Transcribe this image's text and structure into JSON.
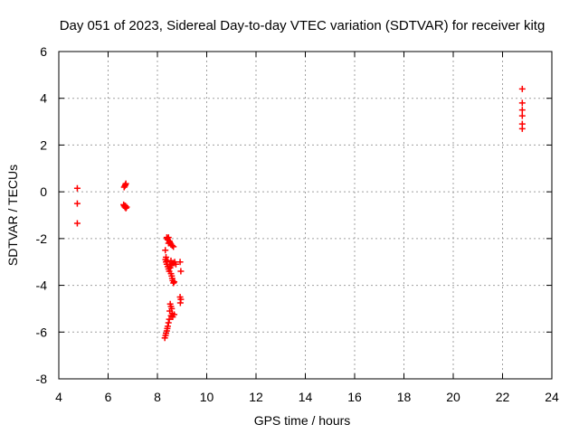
{
  "chart_data": {
    "type": "scatter",
    "title": "Day 051 of 2023, Sidereal Day-to-day VTEC variation (SDTVAR) for receiver kitg",
    "xlabel": "GPS time / hours",
    "ylabel": "SDTVAR / TECUs",
    "xlim": [
      4,
      24
    ],
    "ylim": [
      -8,
      6
    ],
    "xticks": [
      "4",
      "6",
      "8",
      "10",
      "12",
      "14",
      "16",
      "18",
      "20",
      "22",
      "24"
    ],
    "yticks": [
      "-8",
      "-6",
      "-4",
      "-2",
      "0",
      "2",
      "4",
      "6"
    ],
    "grid": true,
    "marker": "+",
    "series": [
      {
        "name": "SDTVAR",
        "color": "#ff0000",
        "points": [
          [
            4.75,
            0.15
          ],
          [
            4.75,
            -0.5
          ],
          [
            4.75,
            -1.35
          ],
          [
            6.65,
            0.2
          ],
          [
            6.68,
            0.25
          ],
          [
            6.7,
            0.3
          ],
          [
            6.72,
            0.35
          ],
          [
            6.63,
            -0.55
          ],
          [
            6.65,
            -0.6
          ],
          [
            6.68,
            -0.65
          ],
          [
            6.7,
            -0.6
          ],
          [
            6.72,
            -0.7
          ],
          [
            6.75,
            -0.65
          ],
          [
            8.38,
            -1.95
          ],
          [
            8.4,
            -2.0
          ],
          [
            8.42,
            -2.05
          ],
          [
            8.45,
            -1.95
          ],
          [
            8.48,
            -2.1
          ],
          [
            8.5,
            -2.15
          ],
          [
            8.52,
            -2.2
          ],
          [
            8.55,
            -2.25
          ],
          [
            8.6,
            -2.3
          ],
          [
            8.65,
            -2.35
          ],
          [
            8.45,
            -2.2
          ],
          [
            8.32,
            -2.5
          ],
          [
            8.35,
            -2.8
          ],
          [
            8.33,
            -2.9
          ],
          [
            8.35,
            -3.0
          ],
          [
            8.38,
            -3.1
          ],
          [
            8.4,
            -2.95
          ],
          [
            8.42,
            -3.2
          ],
          [
            8.45,
            -3.3
          ],
          [
            8.48,
            -3.4
          ],
          [
            8.5,
            -3.1
          ],
          [
            8.52,
            -3.25
          ],
          [
            8.55,
            -3.5
          ],
          [
            8.58,
            -3.6
          ],
          [
            8.6,
            -3.7
          ],
          [
            8.62,
            -3.8
          ],
          [
            8.65,
            -3.9
          ],
          [
            8.68,
            -3.85
          ],
          [
            8.58,
            -3.15
          ],
          [
            8.62,
            -3.05
          ],
          [
            8.7,
            -3.0
          ],
          [
            8.75,
            -3.1
          ],
          [
            8.55,
            -2.95
          ],
          [
            8.92,
            -3.0
          ],
          [
            8.95,
            -3.4
          ],
          [
            8.92,
            -4.5
          ],
          [
            8.95,
            -4.6
          ],
          [
            8.93,
            -4.75
          ],
          [
            8.52,
            -4.8
          ],
          [
            8.55,
            -4.9
          ],
          [
            8.58,
            -5.0
          ],
          [
            8.5,
            -5.1
          ],
          [
            8.6,
            -5.2
          ],
          [
            8.55,
            -5.3
          ],
          [
            8.62,
            -5.35
          ],
          [
            8.68,
            -5.25
          ],
          [
            8.48,
            -5.45
          ],
          [
            8.45,
            -5.6
          ],
          [
            8.42,
            -5.75
          ],
          [
            8.4,
            -5.85
          ],
          [
            8.38,
            -5.95
          ],
          [
            8.35,
            -6.05
          ],
          [
            8.33,
            -6.15
          ],
          [
            8.3,
            -6.25
          ],
          [
            22.8,
            4.4
          ],
          [
            22.8,
            3.8
          ],
          [
            22.8,
            3.5
          ],
          [
            22.8,
            3.25
          ],
          [
            22.8,
            2.9
          ],
          [
            22.8,
            2.7
          ]
        ]
      }
    ]
  }
}
